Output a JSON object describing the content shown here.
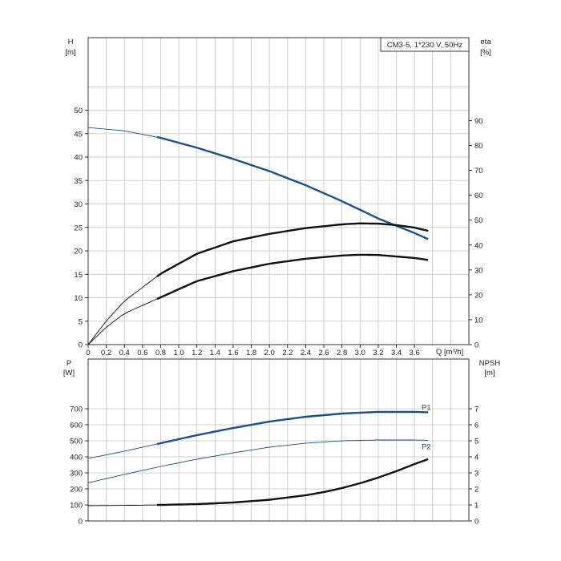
{
  "chart_data": [
    {
      "type": "line",
      "panel": "upper",
      "title": "CM3-5, 1*230 V, 50Hz",
      "xlabel": "Q [m³/h]",
      "x_ticks": [
        "0",
        "0.2",
        "0.4",
        "0.6",
        "0.8",
        "1.0",
        "1.2",
        "1.4",
        "1.6",
        "1.8",
        "2.0",
        "2.2",
        "2.4",
        "2.6",
        "2.8",
        "3.0",
        "3.2",
        "3.4",
        "3.6"
      ],
      "xlim": [
        0,
        4.2
      ],
      "ylabel_left": "H",
      "ylabel_left_unit": "[m]",
      "ylim_left": [
        0,
        60
      ],
      "y_ticks_left": [
        "0",
        "5",
        "10",
        "15",
        "20",
        "25",
        "30",
        "35",
        "40",
        "45",
        "50"
      ],
      "ylabel_right": "eta",
      "ylabel_right_unit": "[%]",
      "ylim_right": [
        0,
        113
      ],
      "y_ticks_right": [
        "0",
        "10",
        "20",
        "30",
        "40",
        "50",
        "60",
        "70",
        "80",
        "90"
      ],
      "grid": true,
      "series": [
        {
          "axis": "left",
          "color": "#1a4f8b",
          "x": [
            0,
            0.4,
            0.8,
            1.2,
            1.6,
            2.0,
            2.4,
            2.8,
            3.2,
            3.6,
            3.75
          ],
          "y": [
            46.3,
            45.6,
            44.1,
            42.0,
            39.6,
            37.0,
            34.0,
            30.6,
            26.9,
            23.8,
            22.5
          ],
          "operating_range": [
            0.76,
            3.75
          ]
        },
        {
          "axis": "right",
          "color": "#111111",
          "x": [
            0,
            0.2,
            0.4,
            0.8,
            1.2,
            1.6,
            2.0,
            2.4,
            2.8,
            3.0,
            3.2,
            3.4,
            3.6,
            3.75
          ],
          "y": [
            0,
            9.5,
            17.5,
            28.5,
            36.5,
            41.5,
            44.5,
            46.8,
            48.3,
            48.7,
            48.6,
            48.0,
            47.0,
            45.7
          ],
          "operating_range": [
            0.76,
            3.75
          ]
        },
        {
          "axis": "right",
          "color": "#111111",
          "x": [
            0,
            0.2,
            0.4,
            0.8,
            1.2,
            1.6,
            2.0,
            2.4,
            2.8,
            3.0,
            3.2,
            3.4,
            3.6,
            3.75
          ],
          "y": [
            0,
            7.0,
            12.5,
            19.0,
            25.5,
            29.5,
            32.5,
            34.5,
            35.8,
            36.1,
            36.0,
            35.4,
            34.8,
            34.0
          ],
          "operating_range": [
            0.76,
            3.75
          ]
        }
      ]
    },
    {
      "type": "line",
      "panel": "lower",
      "ylabel_left": "P",
      "ylabel_left_unit": "[W]",
      "ylim_left": [
        0,
        900
      ],
      "y_ticks_left": [
        "0",
        "100",
        "200",
        "300",
        "400",
        "500",
        "600",
        "700"
      ],
      "ylabel_right": "NPSH",
      "ylabel_right_unit": "[m]",
      "ylim_right": [
        0,
        9
      ],
      "y_ticks_right": [
        "0",
        "1",
        "2",
        "3",
        "4",
        "5",
        "6",
        "7"
      ],
      "xlim": [
        0,
        4.2
      ],
      "grid": true,
      "series": [
        {
          "name": "P1",
          "axis": "left",
          "color": "#1a4f8b",
          "x": [
            0,
            0.4,
            0.8,
            1.2,
            1.6,
            2.0,
            2.4,
            2.8,
            3.2,
            3.6,
            3.75
          ],
          "y": [
            390,
            435,
            485,
            535,
            580,
            620,
            650,
            670,
            680,
            680,
            678
          ],
          "operating_range": [
            0.76,
            3.75
          ]
        },
        {
          "name": "P2",
          "axis": "left",
          "color": "#1a4f8b",
          "x": [
            0,
            0.4,
            0.8,
            1.2,
            1.6,
            2.0,
            2.4,
            2.8,
            3.2,
            3.6,
            3.75
          ],
          "y": [
            238,
            290,
            340,
            385,
            425,
            460,
            485,
            500,
            505,
            505,
            503
          ],
          "operating_range": [
            2.0,
            2.0
          ]
        },
        {
          "axis": "right",
          "color": "#111111",
          "x": [
            0,
            0.4,
            0.8,
            1.2,
            1.6,
            2.0,
            2.4,
            2.6,
            2.8,
            3.0,
            3.2,
            3.4,
            3.6,
            3.75
          ],
          "y": [
            0.95,
            0.97,
            1.0,
            1.05,
            1.15,
            1.32,
            1.6,
            1.8,
            2.05,
            2.35,
            2.7,
            3.1,
            3.55,
            3.85
          ],
          "operating_range": [
            0.76,
            3.75
          ]
        }
      ]
    }
  ]
}
